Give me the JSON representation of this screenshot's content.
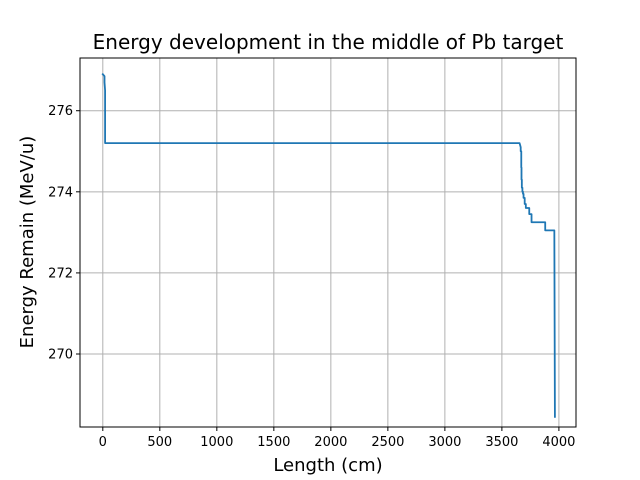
{
  "chart_data": {
    "type": "line",
    "title": "Energy development in the middle of Pb target",
    "xlabel": "Length (cm)",
    "ylabel": "Energy Remain (MeV/u)",
    "xlim": [
      -200,
      4150
    ],
    "ylim": [
      268.2,
      277.3
    ],
    "xticks": [
      0,
      500,
      1000,
      1500,
      2000,
      2500,
      3000,
      3500,
      4000
    ],
    "yticks": [
      270,
      272,
      274,
      276
    ],
    "xtick_labels": [
      "0",
      "500",
      "1000",
      "1500",
      "2000",
      "2500",
      "3000",
      "3500",
      "4000"
    ],
    "ytick_labels": [
      "270",
      "272",
      "274",
      "276"
    ],
    "grid": true,
    "legend": "none",
    "series": [
      {
        "color": "#1f77b4",
        "x": [
          0,
          15,
          15,
          20,
          20,
          3655,
          3660,
          3665,
          3665,
          3670,
          3670,
          3672,
          3672,
          3675,
          3675,
          3680,
          3680,
          3685,
          3685,
          3690,
          3690,
          3700,
          3700,
          3710,
          3710,
          3740,
          3740,
          3760,
          3760,
          3780,
          3780,
          3880,
          3880,
          3960,
          3960,
          3965
        ],
        "y": [
          276.9,
          276.85,
          276.7,
          276.5,
          275.2,
          275.2,
          275.15,
          275.1,
          275.0,
          275.0,
          274.6,
          274.6,
          274.3,
          274.3,
          274.1,
          274.1,
          274.0,
          274.0,
          273.95,
          273.95,
          273.85,
          273.85,
          273.7,
          273.7,
          273.6,
          273.6,
          273.45,
          273.45,
          273.25,
          273.25,
          273.25,
          273.25,
          273.05,
          273.05,
          273.05,
          268.45
        ]
      }
    ]
  }
}
